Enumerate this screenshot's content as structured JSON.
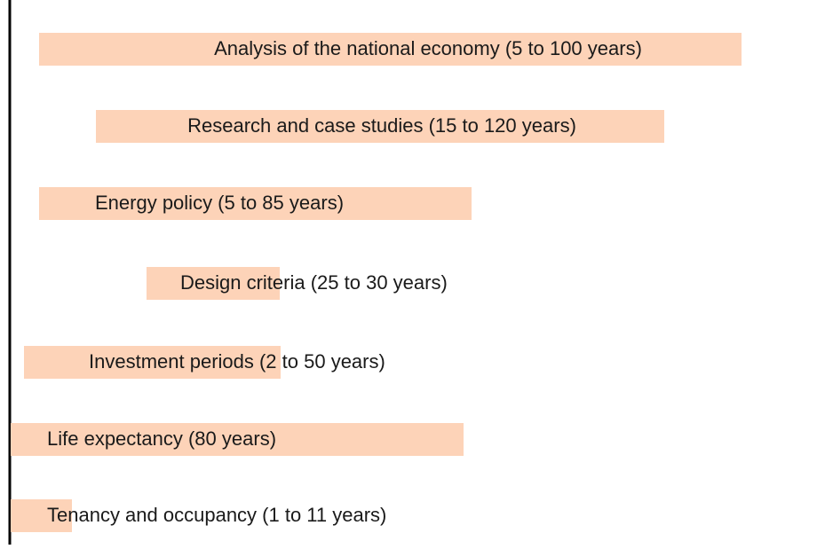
{
  "items": [
    {
      "label": "Analysis of the national economy (5 to 100 years)"
    },
    {
      "label": "Research and case studies (15 to 120 years)"
    },
    {
      "label": "Energy policy (5 to 85 years)"
    },
    {
      "label": "Design criteria (25 to 30 years)"
    },
    {
      "label": "Investment periods (2 to 50 years)"
    },
    {
      "label": "Life expectancy (80 years)"
    },
    {
      "label": "Tenancy and occupancy (1 to 11 years)"
    }
  ]
}
